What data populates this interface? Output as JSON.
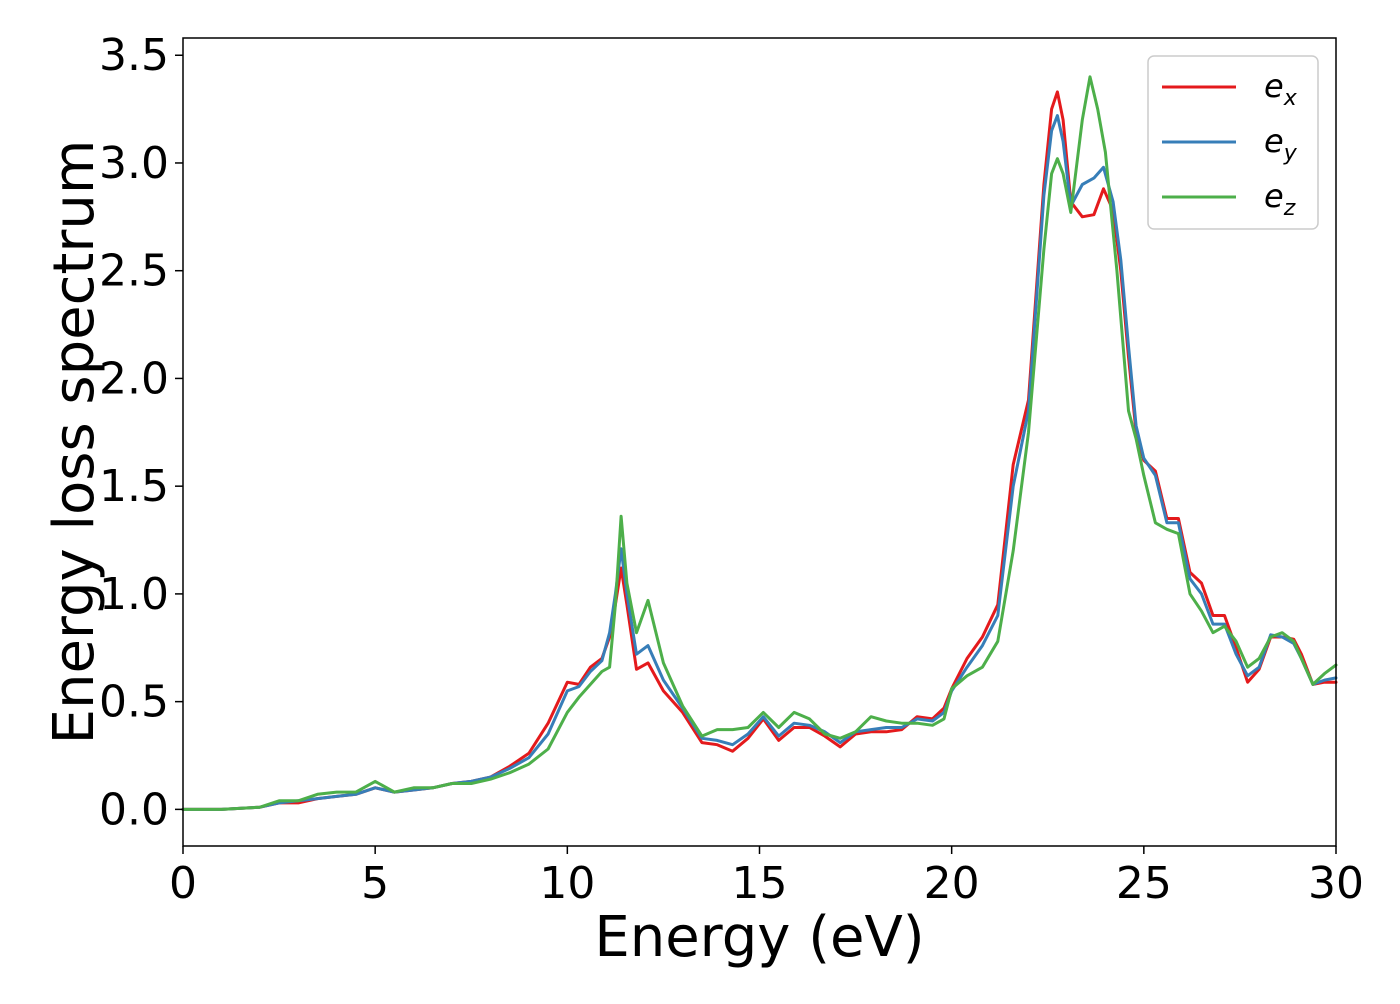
{
  "chart_data": {
    "type": "line",
    "xlabel": "Energy (eV)",
    "ylabel": "Energy loss spectrum",
    "xlim": [
      0,
      30
    ],
    "ylim": [
      -0.17,
      3.58
    ],
    "xticks": [
      0,
      5,
      10,
      15,
      20,
      25,
      30
    ],
    "yticks": [
      0.0,
      0.5,
      1.0,
      1.5,
      2.0,
      2.5,
      3.0,
      3.5
    ],
    "xtick_labels": [
      "0",
      "5",
      "10",
      "15",
      "20",
      "25",
      "30"
    ],
    "ytick_labels": [
      "0.0",
      "0.5",
      "1.0",
      "1.5",
      "2.0",
      "2.5",
      "3.0",
      "3.5"
    ],
    "grid": false,
    "legend": {
      "position": "top-right",
      "entries": [
        {
          "base": "e",
          "sub": "x"
        },
        {
          "base": "e",
          "sub": "y"
        },
        {
          "base": "e",
          "sub": "z"
        }
      ]
    },
    "series": [
      {
        "name": "e_x",
        "color": "#e41a1c",
        "x": [
          0,
          1,
          2,
          2.5,
          3,
          3.5,
          4,
          4.5,
          5,
          5.5,
          6,
          6.5,
          7,
          7.5,
          8,
          8.5,
          9,
          9.5,
          10,
          10.3,
          10.6,
          10.9,
          11.1,
          11.25,
          11.4,
          11.55,
          11.8,
          12.1,
          12.5,
          13,
          13.5,
          13.9,
          14.3,
          14.7,
          15.1,
          15.5,
          15.9,
          16.3,
          16.7,
          17.1,
          17.5,
          17.9,
          18.3,
          18.7,
          19.1,
          19.5,
          19.8,
          20,
          20.4,
          20.8,
          21.2,
          21.6,
          22,
          22.4,
          22.6,
          22.75,
          22.9,
          23.1,
          23.4,
          23.7,
          23.95,
          24.2,
          24.4,
          24.6,
          24.8,
          25,
          25.3,
          25.6,
          25.9,
          26.2,
          26.5,
          26.8,
          27.1,
          27.4,
          27.7,
          28,
          28.3,
          28.6,
          28.9,
          29.1,
          29.4,
          29.7,
          30
        ],
        "y": [
          0,
          0,
          0.01,
          0.03,
          0.03,
          0.05,
          0.06,
          0.07,
          0.1,
          0.08,
          0.09,
          0.1,
          0.12,
          0.13,
          0.15,
          0.2,
          0.26,
          0.4,
          0.59,
          0.58,
          0.66,
          0.7,
          0.8,
          0.95,
          1.12,
          0.95,
          0.65,
          0.68,
          0.55,
          0.45,
          0.31,
          0.3,
          0.27,
          0.33,
          0.42,
          0.32,
          0.38,
          0.38,
          0.34,
          0.29,
          0.35,
          0.36,
          0.36,
          0.37,
          0.43,
          0.42,
          0.47,
          0.56,
          0.7,
          0.8,
          0.95,
          1.6,
          1.9,
          2.9,
          3.25,
          3.33,
          3.2,
          2.82,
          2.75,
          2.76,
          2.88,
          2.78,
          2.5,
          2.1,
          1.75,
          1.62,
          1.57,
          1.35,
          1.35,
          1.1,
          1.05,
          0.9,
          0.9,
          0.75,
          0.59,
          0.65,
          0.8,
          0.8,
          0.79,
          0.72,
          0.58,
          0.59,
          0.59
        ]
      },
      {
        "name": "e_y",
        "color": "#377eb8",
        "x": [
          0,
          1,
          2,
          2.5,
          3,
          3.5,
          4,
          4.5,
          5,
          5.5,
          6,
          6.5,
          7,
          7.5,
          8,
          8.5,
          9,
          9.5,
          10,
          10.3,
          10.6,
          10.9,
          11.1,
          11.25,
          11.4,
          11.55,
          11.8,
          12.1,
          12.5,
          13,
          13.5,
          13.9,
          14.3,
          14.7,
          15.1,
          15.5,
          15.9,
          16.3,
          16.7,
          17.1,
          17.5,
          17.9,
          18.3,
          18.7,
          19.1,
          19.5,
          19.8,
          20,
          20.4,
          20.8,
          21.2,
          21.6,
          22,
          22.4,
          22.6,
          22.75,
          22.9,
          23.1,
          23.4,
          23.7,
          23.95,
          24.2,
          24.4,
          24.6,
          24.8,
          25,
          25.3,
          25.6,
          25.9,
          26.2,
          26.5,
          26.8,
          27.1,
          27.4,
          27.7,
          28,
          28.3,
          28.6,
          28.9,
          29.1,
          29.4,
          29.7,
          30
        ],
        "y": [
          0,
          0,
          0.01,
          0.03,
          0.04,
          0.05,
          0.06,
          0.07,
          0.1,
          0.08,
          0.09,
          0.1,
          0.12,
          0.13,
          0.15,
          0.19,
          0.24,
          0.35,
          0.55,
          0.57,
          0.64,
          0.69,
          0.82,
          1.0,
          1.21,
          1.0,
          0.72,
          0.76,
          0.6,
          0.47,
          0.33,
          0.32,
          0.3,
          0.35,
          0.43,
          0.34,
          0.4,
          0.39,
          0.36,
          0.31,
          0.36,
          0.37,
          0.38,
          0.38,
          0.42,
          0.41,
          0.45,
          0.55,
          0.66,
          0.76,
          0.9,
          1.5,
          1.85,
          2.85,
          3.15,
          3.22,
          3.1,
          2.8,
          2.9,
          2.93,
          2.98,
          2.82,
          2.55,
          2.15,
          1.78,
          1.63,
          1.55,
          1.33,
          1.33,
          1.07,
          1.0,
          0.86,
          0.86,
          0.72,
          0.62,
          0.66,
          0.81,
          0.8,
          0.77,
          0.7,
          0.58,
          0.6,
          0.61
        ]
      },
      {
        "name": "e_z",
        "color": "#4daf4a",
        "x": [
          0,
          1,
          2,
          2.5,
          3,
          3.5,
          4,
          4.5,
          5,
          5.5,
          6,
          6.5,
          7,
          7.5,
          8,
          8.5,
          9,
          9.5,
          10,
          10.3,
          10.6,
          10.9,
          11.1,
          11.25,
          11.4,
          11.55,
          11.8,
          12.1,
          12.5,
          13,
          13.5,
          13.9,
          14.3,
          14.7,
          15.1,
          15.5,
          15.9,
          16.3,
          16.7,
          17.1,
          17.5,
          17.9,
          18.3,
          18.7,
          19.1,
          19.5,
          19.8,
          20,
          20.4,
          20.8,
          21.2,
          21.6,
          22,
          22.4,
          22.6,
          22.75,
          22.9,
          23.1,
          23.4,
          23.6,
          23.8,
          24,
          24.3,
          24.6,
          24.8,
          25,
          25.3,
          25.6,
          25.9,
          26.2,
          26.5,
          26.8,
          27.1,
          27.4,
          27.7,
          28,
          28.3,
          28.6,
          28.9,
          29.1,
          29.4,
          29.7,
          30
        ],
        "y": [
          0,
          0,
          0.01,
          0.04,
          0.04,
          0.07,
          0.08,
          0.08,
          0.13,
          0.08,
          0.1,
          0.1,
          0.12,
          0.12,
          0.14,
          0.17,
          0.21,
          0.28,
          0.45,
          0.52,
          0.58,
          0.64,
          0.66,
          0.95,
          1.36,
          1.05,
          0.82,
          0.97,
          0.68,
          0.48,
          0.34,
          0.37,
          0.37,
          0.38,
          0.45,
          0.38,
          0.45,
          0.42,
          0.35,
          0.33,
          0.36,
          0.43,
          0.41,
          0.4,
          0.4,
          0.39,
          0.42,
          0.56,
          0.62,
          0.66,
          0.78,
          1.2,
          1.75,
          2.6,
          2.95,
          3.02,
          2.95,
          2.77,
          3.2,
          3.4,
          3.25,
          3.05,
          2.5,
          1.85,
          1.72,
          1.55,
          1.33,
          1.3,
          1.28,
          1.0,
          0.92,
          0.82,
          0.85,
          0.78,
          0.66,
          0.7,
          0.8,
          0.82,
          0.78,
          0.7,
          0.58,
          0.63,
          0.67
        ]
      }
    ]
  }
}
